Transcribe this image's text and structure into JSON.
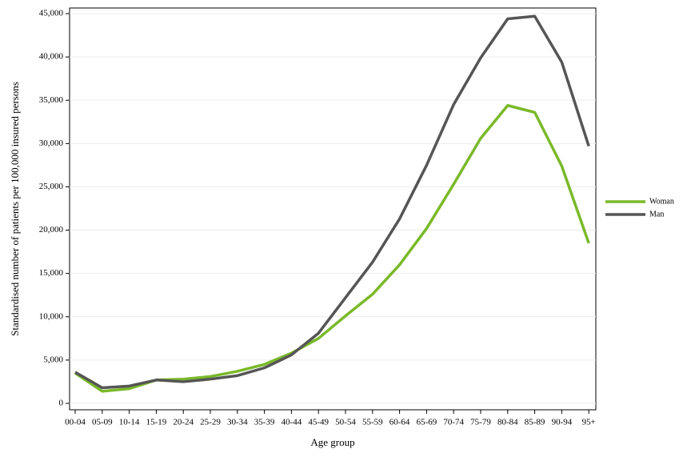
{
  "chart_data": {
    "type": "line",
    "x_label": "Age group",
    "y_label": "Standardised number of patients per 100,000 insured persons",
    "categories": [
      "00-04",
      "05-09",
      "10-14",
      "15-19",
      "20-24",
      "25-29",
      "30-34",
      "35-39",
      "40-44",
      "45-49",
      "50-54",
      "55-59",
      "60-64",
      "65-69",
      "70-74",
      "75-79",
      "80-84",
      "85-89",
      "90-94",
      "95+"
    ],
    "series": [
      {
        "name": "Woman",
        "color": "#7ab929",
        "values": [
          3500,
          1400,
          1700,
          2700,
          2800,
          3100,
          3700,
          4500,
          5800,
          7500,
          10100,
          12600,
          16000,
          20200,
          25300,
          30600,
          34400,
          33600,
          27400,
          18500
        ]
      },
      {
        "name": "Man",
        "color": "#555555",
        "values": [
          3600,
          1800,
          2000,
          2700,
          2500,
          2800,
          3200,
          4100,
          5600,
          8100,
          12200,
          16300,
          21300,
          27500,
          34500,
          39900,
          44400,
          44700,
          39400,
          29700
        ]
      }
    ],
    "ylim": [
      -740,
      45650
    ],
    "yticks": [
      0,
      {
        "value": 5000,
        "label": "5,000"
      },
      {
        "value": 10000,
        "label": "10,000"
      },
      {
        "value": 15000,
        "label": "15,000"
      },
      {
        "value": 20000,
        "label": "20,000"
      },
      {
        "value": 25000,
        "label": "25,000"
      },
      {
        "value": 30000,
        "label": "30,000"
      },
      {
        "value": 35000,
        "label": "35,000"
      },
      {
        "value": 40000,
        "label": "40,000"
      },
      {
        "value": 45000,
        "label": "45,000"
      }
    ],
    "grid": true,
    "legend": "right"
  }
}
